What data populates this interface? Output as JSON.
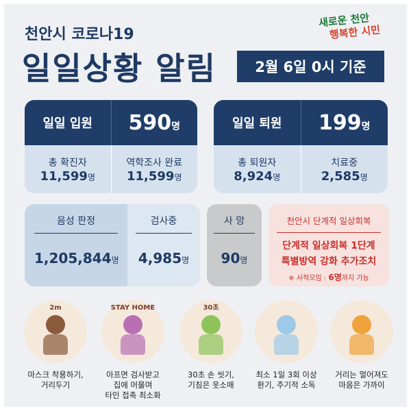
{
  "header": {
    "subtitle": "천안시 코로나19",
    "title": "일일상황 알림",
    "date": "2월 6일 0시 기준",
    "logo": [
      "새로운 천안",
      "행복한 시민"
    ]
  },
  "admission": {
    "label": "일일 입원",
    "value": "590",
    "unit": "명",
    "items": [
      {
        "label": "총 확진자",
        "value": "11,599",
        "unit": "명"
      },
      {
        "label": "역학조사 완료",
        "value": "11,599",
        "unit": "명"
      }
    ]
  },
  "discharge": {
    "label": "일일 퇴원",
    "value": "199",
    "unit": "명",
    "items": [
      {
        "label": "총 퇴원자",
        "value": "8,924",
        "unit": "명"
      },
      {
        "label": "치료중",
        "value": "2,585",
        "unit": "명"
      }
    ]
  },
  "tests": [
    {
      "label": "음성 판정",
      "value": "1,205,844",
      "unit": "명"
    },
    {
      "label": "검사중",
      "value": "4,985",
      "unit": "명"
    }
  ],
  "deaths": {
    "label": "사 망",
    "value": "90",
    "unit": "명"
  },
  "recovery": {
    "title": "천안시 단계적 일상회복",
    "lines": [
      "단계적 일상회복 1단계",
      "특별방역 강화 추가조치"
    ],
    "note_prefix": "※ 사적모임 : ",
    "note_highlight": "6명",
    "note_suffix": "까지 가능"
  },
  "tips": [
    {
      "caption": [
        "마스크 착용하기,",
        "거리두기"
      ],
      "icon_text": "2m"
    },
    {
      "caption": [
        "아프면 검사받고",
        "집에 머물며",
        "타인 접촉 최소화"
      ],
      "icon_text": "STAY HOME"
    },
    {
      "caption": [
        "30초 손 씻기,",
        "기침은 옷소매"
      ],
      "icon_text": "30초"
    },
    {
      "caption": [
        "최소 1일 3회 이상",
        "환기, 주기적 소독"
      ]
    },
    {
      "caption": [
        "거리는 멀어져도",
        "마음은 가까이"
      ]
    }
  ]
}
